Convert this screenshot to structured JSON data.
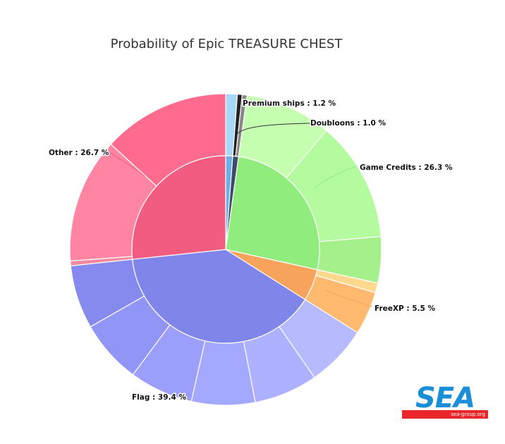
{
  "chart_data": {
    "type": "pie",
    "title": "Probability of Epic TREASURE CHEST",
    "inner": [
      {
        "name": "Premium ships",
        "value": 1.2,
        "color": "#6ab0e8"
      },
      {
        "name": "Doubloons",
        "value": 1.0,
        "color": "#3d4a6b"
      },
      {
        "name": "Game Credits",
        "value": 26.3,
        "color": "#90ec7d"
      },
      {
        "name": "FreeXP",
        "value": 5.5,
        "color": "#f7a35c"
      },
      {
        "name": "Flag",
        "value": 39.4,
        "color": "#8085e9"
      },
      {
        "name": "Other",
        "value": 26.7,
        "color": "#f15c80"
      }
    ],
    "outer": [
      {
        "group": "Premium ships",
        "value": 1.2,
        "color": "#a8d8f8"
      },
      {
        "group": "Doubloons",
        "value": 0.5,
        "color": "#222222"
      },
      {
        "group": "Doubloons",
        "value": 0.5,
        "color": "#888888"
      },
      {
        "group": "Game Credits",
        "value": 9.0,
        "color": "#c5ffb0"
      },
      {
        "group": "Game Credits",
        "value": 12.5,
        "color": "#b4fa9e"
      },
      {
        "group": "Game Credits",
        "value": 4.8,
        "color": "#a6f08c"
      },
      {
        "group": "FreeXP",
        "value": 1.0,
        "color": "#ffd890"
      },
      {
        "group": "FreeXP",
        "value": 4.5,
        "color": "#ffba70"
      },
      {
        "group": "Flag",
        "value": 6.4,
        "color": "#b8baff"
      },
      {
        "group": "Flag",
        "value": 6.6,
        "color": "#aeb1ff"
      },
      {
        "group": "Flag",
        "value": 6.6,
        "color": "#a5a8ff"
      },
      {
        "group": "Flag",
        "value": 6.6,
        "color": "#9b9efa"
      },
      {
        "group": "Flag",
        "value": 6.6,
        "color": "#9195f5"
      },
      {
        "group": "Flag",
        "value": 6.6,
        "color": "#868aee"
      },
      {
        "group": "Other",
        "value": 0.5,
        "color": "#f28aa0"
      },
      {
        "group": "Other",
        "value": 13.0,
        "color": "#ff85a2"
      },
      {
        "group": "Other",
        "value": 13.2,
        "color": "#ff6b8e"
      }
    ],
    "labels": [
      {
        "key": "premium",
        "text": "Premium ships : 1.2 %"
      },
      {
        "key": "doubloons",
        "text": "Doubloons : 1.0 %"
      },
      {
        "key": "credits",
        "text": "Game Credits : 26.3 %"
      },
      {
        "key": "freexp",
        "text": "FreeXP : 5.5 %"
      },
      {
        "key": "flag",
        "text": "Flag : 39.4 %"
      },
      {
        "key": "other",
        "text": "Other : 26.7 %"
      }
    ]
  },
  "logo": {
    "text": "SEA",
    "subtext": "sea-group.org",
    "accent": "#1a8fd8",
    "bar": "#e8262b"
  }
}
